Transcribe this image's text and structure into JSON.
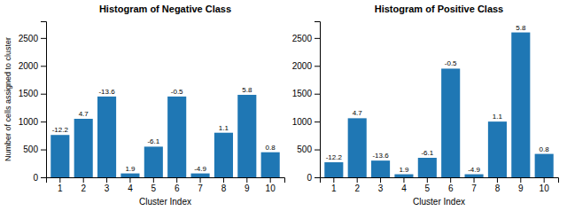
{
  "chart_data": [
    {
      "type": "bar",
      "title": "Histogram of Negative Class",
      "xlabel": "Cluster Index",
      "ylabel": "Number of cells assigned to cluster",
      "categories": [
        "1",
        "2",
        "3",
        "4",
        "5",
        "6",
        "7",
        "8",
        "9",
        "10"
      ],
      "values": [
        760,
        1050,
        1450,
        70,
        550,
        1450,
        70,
        800,
        1480,
        450
      ],
      "annotations": [
        "-12.2",
        "4.7",
        "-13.6",
        "1.9",
        "-6.1",
        "-0.5",
        "-4.9",
        "1.1",
        "5.8",
        "0.8"
      ],
      "color": "#1f77b4",
      "ylim": [
        0,
        2800
      ],
      "yticks": [
        0,
        500,
        1000,
        1500,
        2000,
        2500
      ],
      "grid": false
    },
    {
      "type": "bar",
      "title": "Histogram of Positive Class",
      "xlabel": "Cluster Index",
      "categories": [
        "1",
        "2",
        "3",
        "4",
        "5",
        "6",
        "7",
        "8",
        "9",
        "10"
      ],
      "values": [
        270,
        1060,
        300,
        55,
        350,
        1950,
        55,
        1000,
        2600,
        420
      ],
      "annotations": [
        "-12.2",
        "4.7",
        "-13.6",
        "1.9",
        "-6.1",
        "-0.5",
        "-4.9",
        "1.1",
        "5.8",
        "0.8"
      ],
      "color": "#1f77b4",
      "ylim": [
        0,
        2800
      ],
      "yticks": [
        0,
        500,
        1000,
        1500,
        2000,
        2500
      ],
      "grid": false
    }
  ]
}
